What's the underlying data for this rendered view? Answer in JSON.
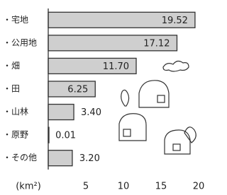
{
  "chart_data": {
    "type": "bar",
    "orientation": "horizontal",
    "categories": [
      "・宅地",
      "・公用地",
      "・畑",
      "・田",
      "・山林",
      "・原野",
      "・その他"
    ],
    "values": [
      19.52,
      17.12,
      11.7,
      6.25,
      3.4,
      0.01,
      3.2
    ],
    "value_labels": [
      "19.52",
      "17.12",
      "11.70",
      "6.25",
      "3.40",
      "0.01",
      "3.20"
    ],
    "color": "#cfcfcf",
    "xlabel": "(km²)",
    "xlim": [
      0,
      20
    ],
    "xticks": [
      5,
      10,
      15,
      20
    ]
  }
}
